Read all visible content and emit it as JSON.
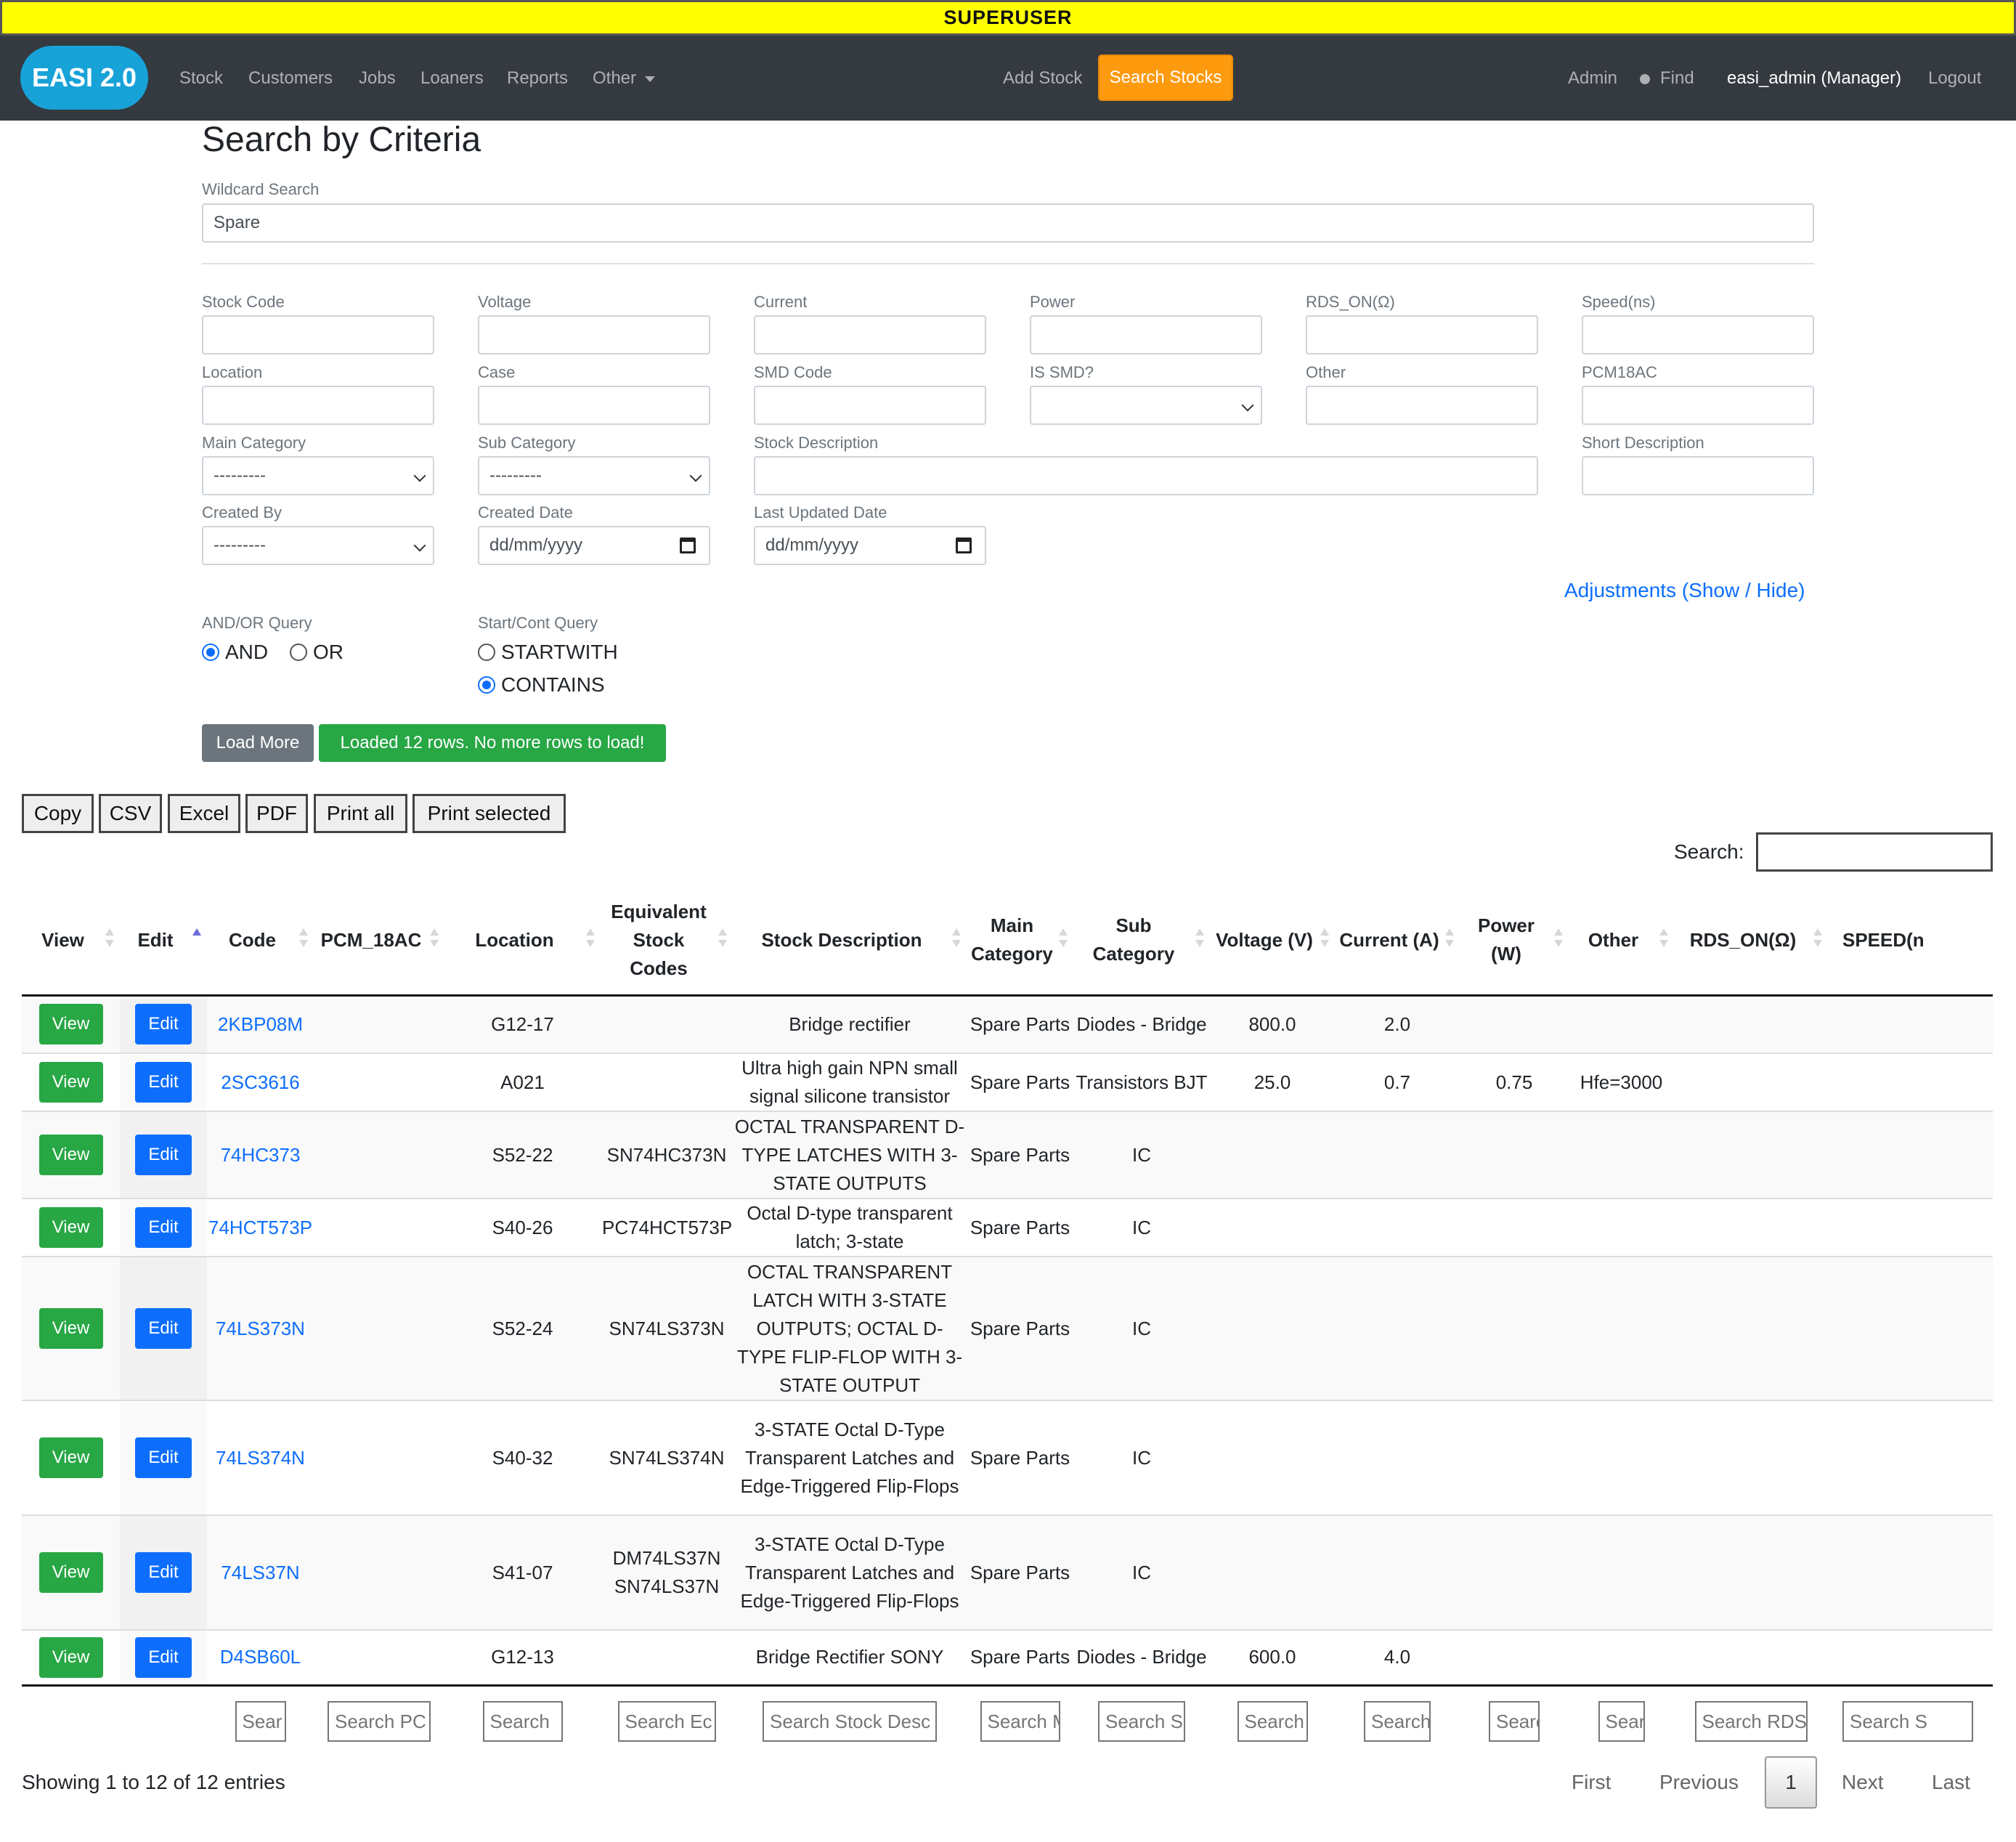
{
  "banner": "SUPERUSER",
  "navbar": {
    "brand": "EASI 2.0",
    "links": [
      "Stock",
      "Customers",
      "Jobs",
      "Loaners",
      "Reports",
      "Other"
    ],
    "add_stock": "Add Stock",
    "search_stocks": "Search Stocks",
    "admin": "Admin",
    "find": "Find",
    "user": "easi_admin (Manager)",
    "logout": "Logout"
  },
  "form": {
    "title": "Search by Criteria",
    "wildcard_label": "Wildcard Search",
    "wildcard_value": "Spare",
    "fields": {
      "stock_code": "Stock Code",
      "voltage": "Voltage",
      "current": "Current",
      "power": "Power",
      "rds_on": "RDS_ON(Ω)",
      "speed": "Speed(ns)",
      "location": "Location",
      "case": "Case",
      "smd_code": "SMD Code",
      "is_smd": "IS SMD?",
      "other": "Other",
      "pcm18ac": "PCM18AC",
      "main_category": "Main Category",
      "sub_category": "Sub Category",
      "stock_description": "Stock Description",
      "short_description": "Short Description",
      "created_by": "Created By",
      "created_date": "Created Date",
      "last_updated_date": "Last Updated Date"
    },
    "select_placeholder": "---------",
    "date_placeholder": "dd/mm/yyyy",
    "adjustments_link": "Adjustments (Show / Hide)",
    "andor_label": "AND/OR Query",
    "and": "AND",
    "or": "OR",
    "startcont_label": "Start/Cont Query",
    "startwith": "STARTWITH",
    "contains": "CONTAINS",
    "load_more": "Load More",
    "load_status": "Loaded 12 rows. No more rows to load!"
  },
  "export_buttons": [
    "Copy",
    "CSV",
    "Excel",
    "PDF",
    "Print all",
    "Print selected"
  ],
  "table_search_label": "Search:",
  "table": {
    "headers": [
      "View",
      "Edit",
      "Code",
      "PCM_18AC",
      "Location",
      "Equivalent Stock Codes",
      "Stock Description",
      "Main Category",
      "Sub Category",
      "Voltage (V)",
      "Current (A)",
      "Power (W)",
      "Other",
      "RDS_ON(Ω)",
      "SPEED(n"
    ],
    "view_label": "View",
    "edit_label": "Edit",
    "rows": [
      {
        "code": "2KBP08M",
        "pcm": "",
        "location": "G12-17",
        "equiv": "",
        "desc": "Bridge rectifier",
        "main": "Spare Parts",
        "sub": "Diodes - Bridge",
        "voltage": "800.0",
        "current": "2.0",
        "power": "",
        "other": "",
        "rds": "",
        "speed": ""
      },
      {
        "code": "2SC3616",
        "pcm": "",
        "location": "A021",
        "equiv": "",
        "desc": "Ultra high gain NPN small signal silicone transistor",
        "main": "Spare Parts",
        "sub": "Transistors BJT",
        "voltage": "25.0",
        "current": "0.7",
        "power": "0.75",
        "other": "Hfe=3000",
        "rds": "",
        "speed": ""
      },
      {
        "code": "74HC373",
        "pcm": "",
        "location": "S52-22",
        "equiv": "SN74HC373N",
        "desc": "OCTAL TRANSPARENT D-TYPE LATCHES WITH 3-STATE OUTPUTS",
        "main": "Spare Parts",
        "sub": "IC",
        "voltage": "",
        "current": "",
        "power": "",
        "other": "",
        "rds": "",
        "speed": ""
      },
      {
        "code": "74HCT573P",
        "pcm": "",
        "location": "S40-26",
        "equiv": "PC74HCT573P",
        "desc": "Octal D-type transparent latch; 3-state",
        "main": "Spare Parts",
        "sub": "IC",
        "voltage": "",
        "current": "",
        "power": "",
        "other": "",
        "rds": "",
        "speed": ""
      },
      {
        "code": "74LS373N",
        "pcm": "",
        "location": "S52-24",
        "equiv": "SN74LS373N",
        "desc": "OCTAL TRANSPARENT LATCH WITH 3-STATE OUTPUTS; OCTAL D-TYPE FLIP-FLOP WITH 3-STATE OUTPUT",
        "main": "Spare Parts",
        "sub": "IC",
        "voltage": "",
        "current": "",
        "power": "",
        "other": "",
        "rds": "",
        "speed": ""
      },
      {
        "code": "74LS374N",
        "pcm": "",
        "location": "S40-32",
        "equiv": "SN74LS374N",
        "desc": "3-STATE Octal D-Type Transparent Latches and Edge-Triggered Flip-Flops",
        "main": "Spare Parts",
        "sub": "IC",
        "voltage": "",
        "current": "",
        "power": "",
        "other": "",
        "rds": "",
        "speed": ""
      },
      {
        "code": "74LS37N",
        "pcm": "",
        "location": "S41-07",
        "equiv": "DM74LS37N SN74LS37N",
        "desc": "3-STATE Octal D-Type Transparent Latches and Edge-Triggered Flip-Flops",
        "main": "Spare Parts",
        "sub": "IC",
        "voltage": "",
        "current": "",
        "power": "",
        "other": "",
        "rds": "",
        "speed": ""
      },
      {
        "code": "D4SB60L",
        "pcm": "",
        "location": "G12-13",
        "equiv": "",
        "desc": "Bridge Rectifier SONY",
        "main": "Spare Parts",
        "sub": "Diodes - Bridge",
        "voltage": "600.0",
        "current": "4.0",
        "power": "",
        "other": "",
        "rds": "",
        "speed": ""
      }
    ],
    "footer_placeholders": [
      "Sear",
      "Search PC",
      "Search",
      "Search Ec",
      "Search Stock Desc",
      "Search M",
      "Search S",
      "Search",
      "Search",
      "Searc",
      "Sear",
      "Search RDS",
      "Search S"
    ]
  },
  "info": "Showing 1 to 12 of 12 entries",
  "pagination": {
    "first": "First",
    "previous": "Previous",
    "current": "1",
    "next": "Next",
    "last": "Last"
  },
  "colors": {
    "banner": "#ffff00",
    "navbar": "#343a40",
    "brand": "#17a2d8",
    "accent_orange": "#fd9a0e",
    "view_green": "#28a745",
    "edit_blue": "#0d6efd",
    "link_blue": "#0d6efd"
  }
}
